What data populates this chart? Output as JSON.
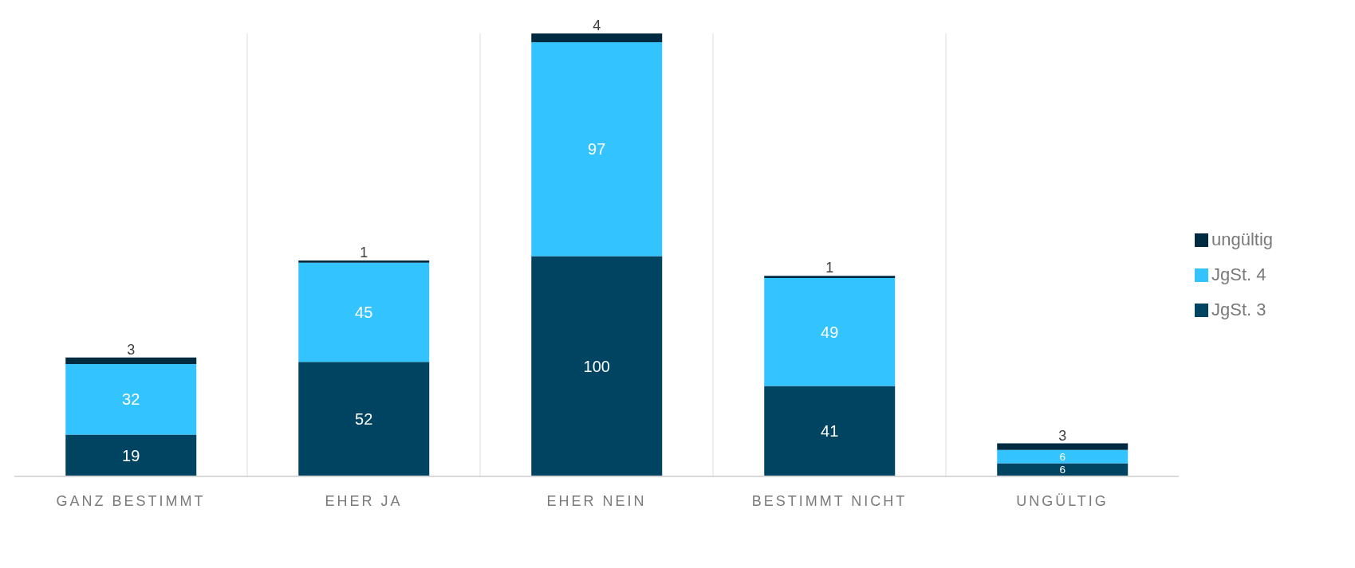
{
  "chart_data": {
    "type": "bar",
    "stacked": true,
    "data_labels": true,
    "grid": "x",
    "legend": "right",
    "categories": [
      "GANZ BESTIMMT",
      "EHER JA",
      "EHER NEIN",
      "BESTIMMT NICHT",
      "UNGÜLTIG"
    ],
    "series": [
      {
        "name": "JgSt. 3",
        "color": "#004462",
        "values": [
          19,
          52,
          100,
          41,
          6
        ]
      },
      {
        "name": "JgSt. 4",
        "color": "#33c3ff",
        "values": [
          32,
          45,
          97,
          49,
          6
        ]
      },
      {
        "name": "ungültig",
        "color": "#002a40",
        "values": [
          3,
          1,
          4,
          1,
          3
        ]
      }
    ]
  }
}
